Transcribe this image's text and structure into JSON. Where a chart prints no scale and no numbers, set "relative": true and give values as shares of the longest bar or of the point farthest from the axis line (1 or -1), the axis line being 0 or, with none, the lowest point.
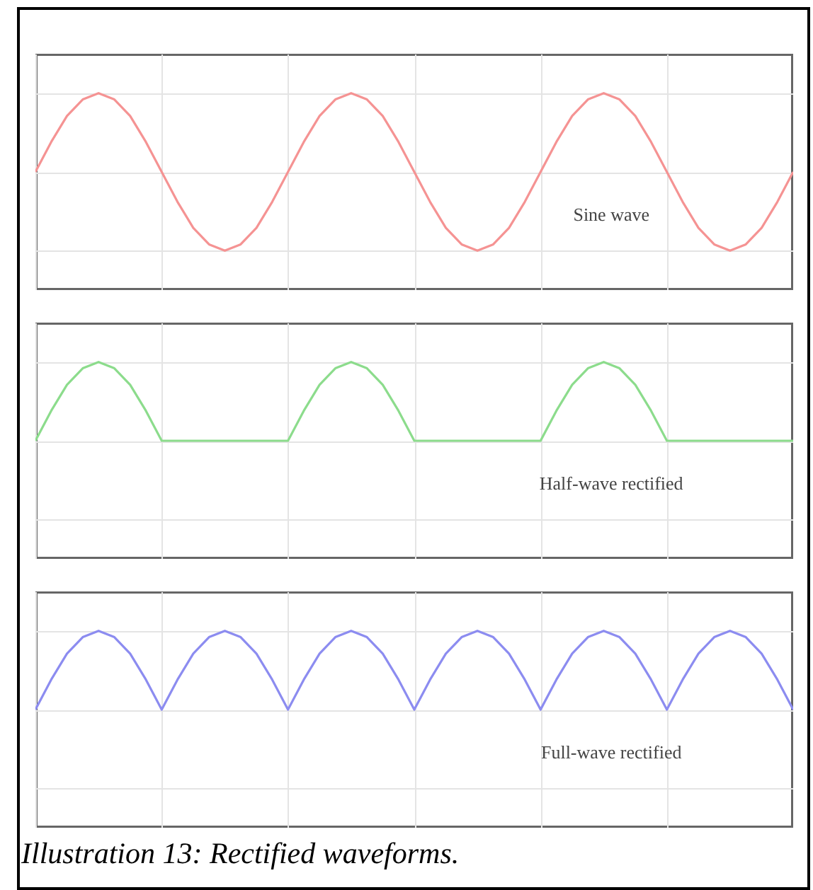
{
  "chart_data": [
    {
      "type": "line",
      "relative": true,
      "grid": true,
      "categories": [
        null,
        null,
        null,
        null,
        null,
        null,
        null,
        null,
        null,
        null,
        null,
        null,
        null,
        null,
        null,
        null,
        null,
        null,
        null,
        null,
        null,
        null,
        null,
        null,
        null,
        null,
        null,
        null,
        null,
        null,
        null,
        null,
        null,
        null,
        null,
        null,
        null,
        null,
        null,
        null,
        null,
        null,
        null,
        null,
        null,
        null,
        null,
        null,
        null
      ],
      "series": [
        {
          "name": "Sine wave",
          "color": "#f59393",
          "values": [
            0,
            0.38,
            0.71,
            0.92,
            1,
            0.92,
            0.71,
            0.38,
            0,
            -0.38,
            -0.71,
            -0.92,
            -1,
            -0.92,
            -0.71,
            -0.38,
            0,
            0.38,
            0.71,
            0.92,
            1,
            0.92,
            0.71,
            0.38,
            0,
            -0.38,
            -0.71,
            -0.92,
            -1,
            -0.92,
            -0.71,
            -0.38,
            0,
            0.38,
            0.71,
            0.92,
            1,
            0.92,
            0.71,
            0.38,
            0,
            -0.38,
            -0.71,
            -0.92,
            -1,
            -0.92,
            -0.71,
            -0.38,
            0
          ]
        }
      ]
    },
    {
      "type": "line",
      "relative": true,
      "grid": true,
      "categories": [
        null,
        null,
        null,
        null,
        null,
        null,
        null,
        null,
        null,
        null,
        null,
        null,
        null,
        null,
        null,
        null,
        null,
        null,
        null,
        null,
        null,
        null,
        null,
        null,
        null,
        null,
        null,
        null,
        null,
        null,
        null,
        null,
        null,
        null,
        null,
        null,
        null,
        null,
        null,
        null,
        null,
        null,
        null,
        null,
        null,
        null,
        null,
        null,
        null
      ],
      "series": [
        {
          "name": "Half-wave rectified",
          "color": "#8cdc8c",
          "values": [
            0,
            0.38,
            0.71,
            0.92,
            1,
            0.92,
            0.71,
            0.38,
            0,
            0,
            0,
            0,
            0,
            0,
            0,
            0,
            0,
            0.38,
            0.71,
            0.92,
            1,
            0.92,
            0.71,
            0.38,
            0,
            0,
            0,
            0,
            0,
            0,
            0,
            0,
            0,
            0.38,
            0.71,
            0.92,
            1,
            0.92,
            0.71,
            0.38,
            0,
            0,
            0,
            0,
            0,
            0,
            0,
            0,
            0
          ]
        }
      ]
    },
    {
      "type": "line",
      "relative": true,
      "grid": true,
      "categories": [
        null,
        null,
        null,
        null,
        null,
        null,
        null,
        null,
        null,
        null,
        null,
        null,
        null,
        null,
        null,
        null,
        null,
        null,
        null,
        null,
        null,
        null,
        null,
        null,
        null,
        null,
        null,
        null,
        null,
        null,
        null,
        null,
        null,
        null,
        null,
        null,
        null,
        null,
        null,
        null,
        null,
        null,
        null,
        null,
        null,
        null,
        null,
        null,
        null
      ],
      "series": [
        {
          "name": "Full-wave rectified",
          "color": "#8c8cf0",
          "values": [
            0,
            0.38,
            0.71,
            0.92,
            1,
            0.92,
            0.71,
            0.38,
            0,
            0.38,
            0.71,
            0.92,
            1,
            0.92,
            0.71,
            0.38,
            0,
            0.38,
            0.71,
            0.92,
            1,
            0.92,
            0.71,
            0.38,
            0,
            0.38,
            0.71,
            0.92,
            1,
            0.92,
            0.71,
            0.38,
            0,
            0.38,
            0.71,
            0.92,
            1,
            0.92,
            0.71,
            0.38,
            0,
            0.38,
            0.71,
            0.92,
            1,
            0.92,
            0.71,
            0.38,
            0
          ]
        }
      ],
      "annotations": [
        "Illustration 13: Rectified waveforms."
      ]
    }
  ]
}
